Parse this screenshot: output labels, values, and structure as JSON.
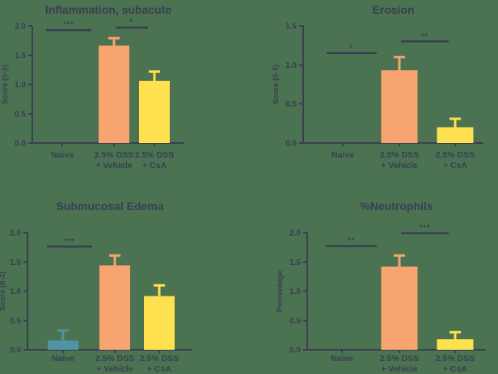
{
  "figure": {
    "background": "#4B7251",
    "text_color": "#393E52",
    "axis_color": "#393E52"
  },
  "chart_data": [
    {
      "type": "bar",
      "title": "Inflammation, subacute",
      "ylabel": "Score (0-3)",
      "xlabel": "",
      "ylim": [
        0,
        2.0
      ],
      "yticks": [
        0.0,
        0.5,
        1.0,
        1.5,
        2.0
      ],
      "ytick_labels": [
        "0.0",
        "0.5",
        "1.0",
        "1.5",
        "2.0"
      ],
      "grid": "off",
      "legend": "none",
      "categories": [
        "Naive",
        "2.5% DSS + Vehicle",
        "2.5% DSS + CsA"
      ],
      "category_lines": [
        [
          "Naive"
        ],
        [
          "2.5% DSS",
          "+ Vehicle"
        ],
        [
          "2.5% DSS",
          "+ CsA"
        ]
      ],
      "values": [
        0,
        1.66,
        1.06
      ],
      "error_plus": [
        0,
        0.13,
        0.16
      ],
      "bar_colors": [
        "#4F94A3",
        "#F8A471",
        "#FFE14F"
      ],
      "significance": [
        {
          "from": 0,
          "to": 1,
          "label": "***",
          "y": 1.93
        },
        {
          "from": 1,
          "to": 2,
          "label": "*",
          "y": 1.97
        }
      ]
    },
    {
      "type": "bar",
      "title": "Erosion",
      "ylabel": "Score (0-3)",
      "xlabel": "",
      "ylim": [
        0,
        1.5
      ],
      "yticks": [
        0.0,
        0.5,
        1.0,
        1.5
      ],
      "ytick_labels": [
        "0.0",
        "0.5",
        "1.0",
        "1.5"
      ],
      "grid": "off",
      "legend": "none",
      "categories": [
        "Naive",
        "2.5% DSS + Vehicle",
        "2.5% DSS + CsA"
      ],
      "category_lines": [
        [
          "Naive"
        ],
        [
          "2.5% DSS",
          "+ Vehicle"
        ],
        [
          "2.5% DSS",
          "+ CsA"
        ]
      ],
      "values": [
        0,
        0.93,
        0.2
      ],
      "error_plus": [
        0,
        0.17,
        0.11
      ],
      "bar_colors": [
        "#4F94A3",
        "#F8A471",
        "#FFE14F"
      ],
      "significance": [
        {
          "from": 0,
          "to": 1,
          "label": "*",
          "y": 1.15
        },
        {
          "from": 1,
          "to": 2,
          "label": "**",
          "y": 1.3
        }
      ]
    },
    {
      "type": "bar",
      "title": "Submucosal Edema",
      "ylabel": "Score (0-3)",
      "xlabel": "",
      "ylim": [
        0,
        2.0
      ],
      "yticks": [
        0.0,
        0.5,
        1.0,
        1.5,
        2.0
      ],
      "ytick_labels": [
        "0.0",
        "0.5",
        "1.0",
        "1.5",
        "2.0"
      ],
      "grid": "off",
      "legend": "none",
      "categories": [
        "Naive",
        "2.5% DSS + Vehicle",
        "2.5% DSS + CsA"
      ],
      "category_lines": [
        [
          "Naive"
        ],
        [
          "2.5% DSS",
          "+ Vehicle"
        ],
        [
          "2.5% DSS",
          "+ CsA"
        ]
      ],
      "values": [
        0.16,
        1.44,
        0.92
      ],
      "error_plus": [
        0.17,
        0.17,
        0.18
      ],
      "bar_colors": [
        "#4F94A3",
        "#F8A471",
        "#FFE14F"
      ],
      "significance": [
        {
          "from": 0,
          "to": 1,
          "label": "***",
          "y": 1.76
        }
      ]
    },
    {
      "type": "bar",
      "title": "%Neutrophils",
      "ylabel": "Percentage",
      "xlabel": "",
      "ylim": [
        0,
        2.0
      ],
      "yticks": [
        0.0,
        0.5,
        1.0,
        1.5,
        2.0
      ],
      "ytick_labels": [
        "0.0",
        "0.5",
        "1.0",
        "1.5",
        "2.0"
      ],
      "grid": "off",
      "legend": "none",
      "categories": [
        "Naive",
        "2.5% DSS + Vehicle",
        "2.5% DSS + CsA"
      ],
      "category_lines": [
        [
          "Naive"
        ],
        [
          "2.5% DSS",
          "+ Vehicle"
        ],
        [
          "2.5% DSS",
          "+ CsA"
        ]
      ],
      "values": [
        0,
        1.42,
        0.18
      ],
      "error_plus": [
        0,
        0.19,
        0.12
      ],
      "bar_colors": [
        "#4F94A3",
        "#F8A471",
        "#FFE14F"
      ],
      "significance": [
        {
          "from": 0,
          "to": 1,
          "label": "**",
          "y": 1.77
        },
        {
          "from": 1,
          "to": 2,
          "label": "***",
          "y": 1.99
        }
      ]
    }
  ]
}
